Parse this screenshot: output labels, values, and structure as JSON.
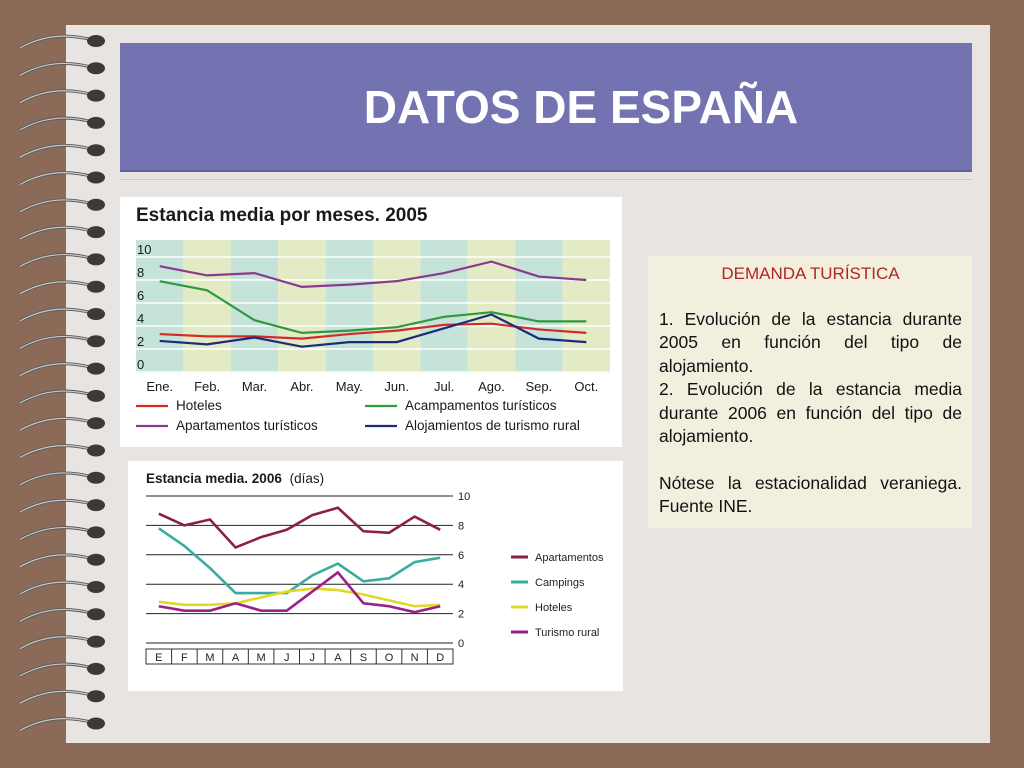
{
  "slide": {
    "title": "DATOS DE ESPAÑA"
  },
  "note": {
    "heading": "DEMANDA TURÍSTICA",
    "item1": "1. Evolución de la estancia durante 2005 en función del tipo de alojamiento.",
    "item2": "2. Evolución de la estancia media durante 2006 en función del tipo de alojamiento.",
    "remark": "Nótese la estacionalidad veraniega. Fuente INE."
  },
  "chart_data": [
    {
      "type": "line",
      "title": "Estancia media por meses. 2005",
      "categories": [
        "Ene.",
        "Feb.",
        "Mar.",
        "Abr.",
        "May.",
        "Jun.",
        "Jul.",
        "Ago.",
        "Sep.",
        "Oct."
      ],
      "ylim": [
        0,
        10
      ],
      "yticks": [
        "0",
        "2",
        "4",
        "6",
        "8",
        "10"
      ],
      "grid": true,
      "legend_position": "bottom",
      "series": [
        {
          "name": "Hoteles",
          "color": "#d42a2a",
          "values": [
            3.3,
            3.1,
            3.1,
            2.9,
            3.3,
            3.6,
            4.1,
            4.2,
            3.7,
            3.4
          ]
        },
        {
          "name": "Acampamentos turísticos",
          "color": "#2e9a3e",
          "values": [
            7.9,
            7.1,
            4.5,
            3.4,
            3.6,
            3.9,
            4.8,
            5.2,
            4.4,
            4.4
          ]
        },
        {
          "name": "Apartamentos turísticos",
          "color": "#8a3a8e",
          "values": [
            9.2,
            8.4,
            8.6,
            7.4,
            7.6,
            7.9,
            8.6,
            9.6,
            8.3,
            8.0
          ]
        },
        {
          "name": "Alojamientos de turismo rural",
          "color": "#1d2b7a",
          "values": [
            2.7,
            2.4,
            3.0,
            2.2,
            2.6,
            2.6,
            3.8,
            5.0,
            2.9,
            2.6
          ]
        }
      ]
    },
    {
      "type": "line",
      "title": "Estancia media. 2006",
      "subtitle": "(días)",
      "categories": [
        "E",
        "F",
        "M",
        "A",
        "M",
        "J",
        "J",
        "A",
        "S",
        "O",
        "N",
        "D"
      ],
      "ylim": [
        0,
        10
      ],
      "yticks": [
        "0",
        "2",
        "4",
        "6",
        "8",
        "10"
      ],
      "grid": true,
      "legend_position": "right",
      "series": [
        {
          "name": "Apartamentos",
          "color": "#8e1f4a",
          "values": [
            8.8,
            8.0,
            8.4,
            6.5,
            7.2,
            7.7,
            8.7,
            9.2,
            7.6,
            7.5,
            8.6,
            7.7
          ]
        },
        {
          "name": "Campings",
          "color": "#3aaba0",
          "values": [
            7.8,
            6.6,
            5.1,
            3.4,
            3.4,
            3.4,
            4.6,
            5.4,
            4.2,
            4.4,
            5.5,
            5.8
          ]
        },
        {
          "name": "Hoteles",
          "color": "#e2d82a",
          "values": [
            2.8,
            2.6,
            2.6,
            2.7,
            3.1,
            3.5,
            3.7,
            3.6,
            3.3,
            2.9,
            2.5,
            2.6
          ]
        },
        {
          "name": "Turismo rural",
          "color": "#9a1f8a",
          "values": [
            2.5,
            2.2,
            2.2,
            2.7,
            2.2,
            2.2,
            3.5,
            4.8,
            2.7,
            2.5,
            2.1,
            2.5
          ]
        }
      ]
    }
  ]
}
